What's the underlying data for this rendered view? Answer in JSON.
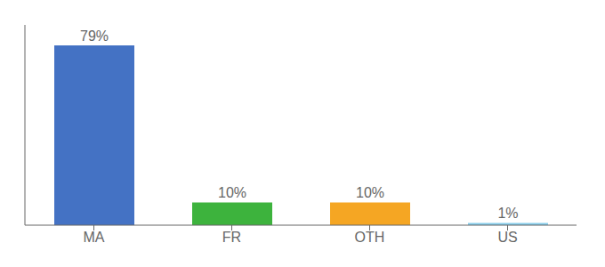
{
  "chart_data": {
    "type": "bar",
    "categories": [
      "MA",
      "FR",
      "OTH",
      "US"
    ],
    "values": [
      79,
      10,
      10,
      1
    ],
    "value_labels": [
      "79%",
      "10%",
      "10%",
      "1%"
    ],
    "colors": [
      "#4472c4",
      "#3db33d",
      "#f5a623",
      "#87ceeb"
    ],
    "ylim": [
      0,
      88
    ],
    "data_labels": true,
    "tick_labels": "x",
    "grid": false
  }
}
